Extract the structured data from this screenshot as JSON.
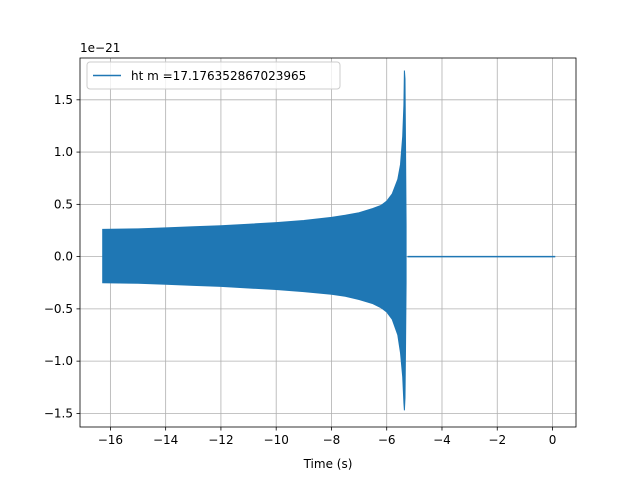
{
  "chart_data": {
    "type": "line",
    "title": "",
    "xlabel": "Time (s)",
    "ylabel": "",
    "y_scale_label": "1e−21",
    "xlim": [
      -17.1,
      0.85
    ],
    "ylim": [
      -1.63,
      1.9
    ],
    "grid": true,
    "legend_position": "upper-left",
    "x_ticks": [
      -16,
      -14,
      -12,
      -10,
      -8,
      -6,
      -4,
      -2,
      0
    ],
    "x_tick_labels": [
      "−16",
      "−14",
      "−12",
      "−10",
      "−8",
      "−6",
      "−4",
      "−2",
      "0"
    ],
    "y_ticks": [
      -1.5,
      -1.0,
      -0.5,
      0.0,
      0.5,
      1.0,
      1.5
    ],
    "y_tick_labels": [
      "−1.5",
      "−1.0",
      "−0.5",
      "0.0",
      "0.5",
      "1.0",
      "1.5"
    ],
    "series": [
      {
        "name": "ht m =17.176352867023965",
        "color": "#1f77b4",
        "envelope": {
          "t": [
            -16.28,
            -15,
            -14,
            -13,
            -12,
            -11,
            -10,
            -9,
            -8,
            -7.5,
            -7,
            -6.5,
            -6.2,
            -6.0,
            -5.8,
            -5.6,
            -5.5,
            -5.42,
            -5.38,
            -5.36,
            -5.34,
            -5.32,
            -5.3
          ],
          "upper": [
            0.26,
            0.265,
            0.275,
            0.285,
            0.295,
            0.31,
            0.325,
            0.345,
            0.375,
            0.395,
            0.42,
            0.46,
            0.49,
            0.53,
            0.6,
            0.74,
            0.88,
            1.15,
            1.45,
            1.78,
            1.7,
            1.1,
            0.3
          ],
          "lower": [
            -0.25,
            -0.255,
            -0.265,
            -0.275,
            -0.285,
            -0.3,
            -0.315,
            -0.335,
            -0.36,
            -0.38,
            -0.41,
            -0.45,
            -0.49,
            -0.53,
            -0.6,
            -0.75,
            -0.92,
            -1.15,
            -1.4,
            -1.47,
            -1.35,
            -0.9,
            -0.25
          ]
        },
        "flat_segment": {
          "x": [
            -5.25,
            0.1
          ],
          "y": [
            0,
            0
          ]
        }
      }
    ]
  }
}
